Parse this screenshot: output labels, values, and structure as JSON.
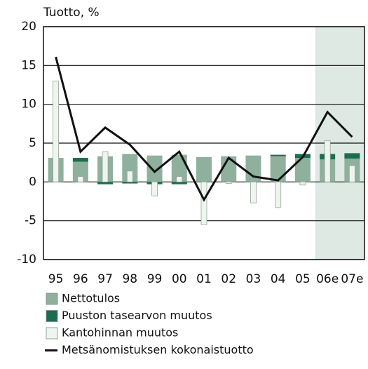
{
  "chart_data": {
    "type": "bar",
    "y_label": "Tuotto, %",
    "categories": [
      "95",
      "96",
      "97",
      "98",
      "99",
      "00",
      "01",
      "02",
      "03",
      "04",
      "05",
      "06e",
      "07e"
    ],
    "series": [
      {
        "name": "Nettotulos",
        "type": "bar",
        "color": "#8fb09c",
        "values": [
          3.1,
          2.6,
          3.3,
          3.6,
          3.4,
          3.5,
          3.2,
          3.3,
          3.4,
          3.3,
          3.1,
          2.9,
          3.0
        ]
      },
      {
        "name": "Puuston tasearvon muutos",
        "type": "bar",
        "color": "#1a6e50",
        "values": [
          0,
          0.5,
          -0.3,
          -0.2,
          -0.3,
          -0.3,
          0,
          0,
          0,
          0.2,
          0.5,
          0.7,
          0.7
        ]
      },
      {
        "name": "Kantohinnan muutos",
        "type": "bar",
        "color": "#eef4ee",
        "values": [
          13.0,
          0.7,
          3.9,
          1.4,
          -1.8,
          0.7,
          -5.5,
          -0.2,
          -2.7,
          -3.3,
          -0.4,
          5.3,
          2.1
        ]
      },
      {
        "name": "Metsänomistuksen kokonaistuotto",
        "type": "line",
        "color": "#111111",
        "values": [
          16.1,
          3.9,
          7.0,
          4.8,
          1.3,
          3.9,
          -2.3,
          3.1,
          0.7,
          0.2,
          3.2,
          9.0,
          5.8
        ]
      }
    ],
    "stacked": true,
    "ylim": [
      -10,
      20
    ],
    "yticks": [
      -10,
      -5,
      0,
      5,
      10,
      15,
      20
    ],
    "grid": true,
    "shade": {
      "from": "06e",
      "color": "#dfe9e4"
    }
  }
}
